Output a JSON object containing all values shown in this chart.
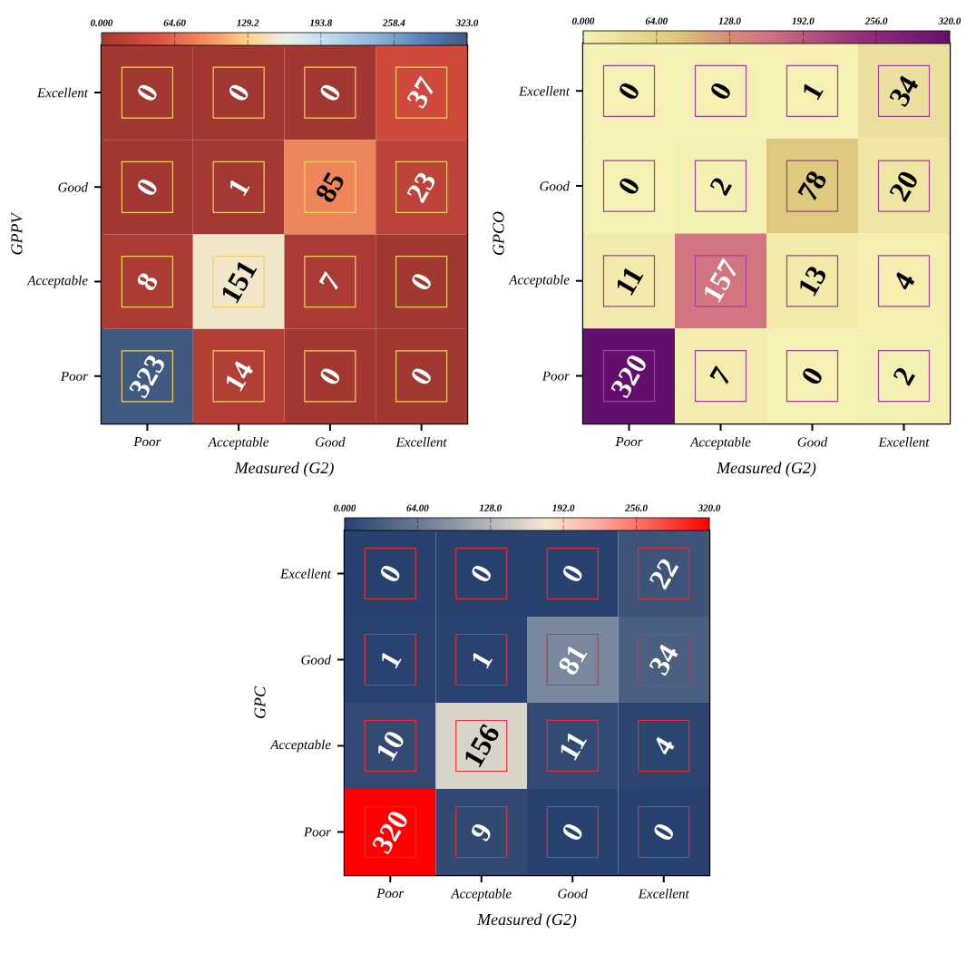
{
  "chart_data": [
    {
      "type": "heatmap",
      "xlabel": "Measured (G2)",
      "ylabel": "GPPV",
      "categories": [
        "Poor",
        "Acceptable",
        "Good",
        "Excellent"
      ],
      "y_categories": [
        "Excellent",
        "Good",
        "Acceptable",
        "Poor"
      ],
      "cells": [
        [
          0,
          0,
          0,
          37
        ],
        [
          0,
          1,
          85,
          23
        ],
        [
          8,
          151,
          7,
          0
        ],
        [
          323,
          14,
          0,
          0
        ]
      ],
      "clim": [
        0,
        323
      ],
      "cticks": [
        {
          "value": 0,
          "label": "0.000"
        },
        {
          "value": 64.6,
          "label": "64.60"
        },
        {
          "value": 129.2,
          "label": "129.2"
        },
        {
          "value": 193.8,
          "label": "193.8"
        },
        {
          "value": 258.4,
          "label": "258.4"
        },
        {
          "value": 323,
          "label": "323.0"
        }
      ],
      "data_labels": true
    },
    {
      "type": "heatmap",
      "xlabel": "Measured (G2)",
      "ylabel": "GPCO",
      "categories": [
        "Poor",
        "Acceptable",
        "Good",
        "Excellent"
      ],
      "y_categories": [
        "Excellent",
        "Good",
        "Acceptable",
        "Poor"
      ],
      "cells": [
        [
          0,
          0,
          1,
          34
        ],
        [
          0,
          2,
          78,
          20
        ],
        [
          11,
          157,
          13,
          4
        ],
        [
          320,
          7,
          0,
          2
        ]
      ],
      "clim": [
        0,
        320
      ],
      "cticks": [
        {
          "value": 0,
          "label": "0.000"
        },
        {
          "value": 64,
          "label": "64.00"
        },
        {
          "value": 128,
          "label": "128.0"
        },
        {
          "value": 192,
          "label": "192.0"
        },
        {
          "value": 256,
          "label": "256.0"
        },
        {
          "value": 320,
          "label": "320.0"
        }
      ],
      "data_labels": true
    },
    {
      "type": "heatmap",
      "xlabel": "Measured (G2)",
      "ylabel": "GPC",
      "categories": [
        "Poor",
        "Acceptable",
        "Good",
        "Excellent"
      ],
      "y_categories": [
        "Excellent",
        "Good",
        "Acceptable",
        "Poor"
      ],
      "cells": [
        [
          0,
          0,
          0,
          22
        ],
        [
          1,
          1,
          81,
          34
        ],
        [
          10,
          156,
          11,
          4
        ],
        [
          320,
          9,
          0,
          0
        ]
      ],
      "clim": [
        0,
        320
      ],
      "cticks": [
        {
          "value": 0,
          "label": "0.000"
        },
        {
          "value": 64,
          "label": "64.00"
        },
        {
          "value": 128,
          "label": "128.0"
        },
        {
          "value": 192,
          "label": "192.0"
        },
        {
          "value": 256,
          "label": "256.0"
        },
        {
          "value": 320,
          "label": "320.0"
        }
      ],
      "data_labels": true
    }
  ]
}
